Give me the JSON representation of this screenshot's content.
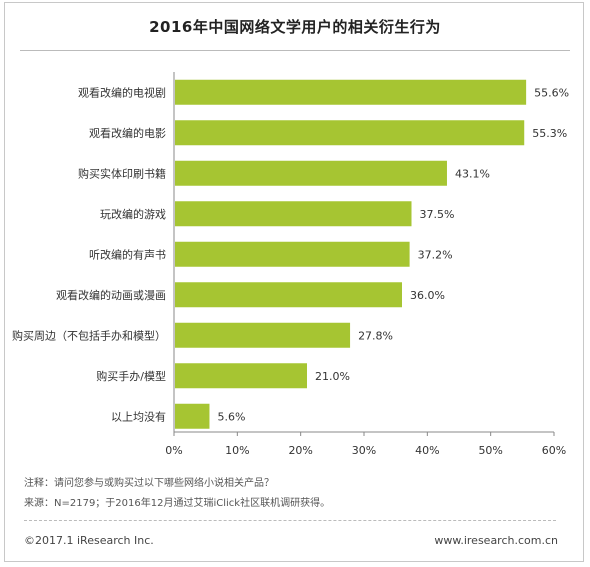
{
  "chart_data": {
    "type": "bar",
    "orientation": "horizontal",
    "title": "2016年中国网络文学用户的相关衍生行为",
    "categories": [
      "观看改编的电视剧",
      "观看改编的电影",
      "购买实体印刷书籍",
      "玩改编的游戏",
      "听改编的有声书",
      "观看改编的动画或漫画",
      "购买周边（不包括手办和模型）",
      "购买手办/模型",
      "以上均没有"
    ],
    "values": [
      55.6,
      55.3,
      43.1,
      37.5,
      37.2,
      36.0,
      27.8,
      21.0,
      5.6
    ],
    "value_labels": [
      "55.6%",
      "55.3%",
      "43.1%",
      "37.5%",
      "37.2%",
      "36.0%",
      "27.8%",
      "21.0%",
      "5.6%"
    ],
    "xlim": [
      0,
      60
    ],
    "ticks": [
      0,
      10,
      20,
      30,
      40,
      50,
      60
    ],
    "tick_labels": [
      "0%",
      "10%",
      "20%",
      "30%",
      "40%",
      "50%",
      "60%"
    ],
    "bar_color": "#a6c532",
    "grid": false,
    "legend": "none"
  },
  "notes": {
    "note": "注释：请问您参与或购买过以下哪些网络小说相关产品？",
    "source": "来源：N=2179；于2016年12月通过艾瑞iClick社区联机调研获得。"
  },
  "footer": {
    "copyright": "©2017.1 iResearch Inc.",
    "website": "www.iresearch.com.cn"
  }
}
